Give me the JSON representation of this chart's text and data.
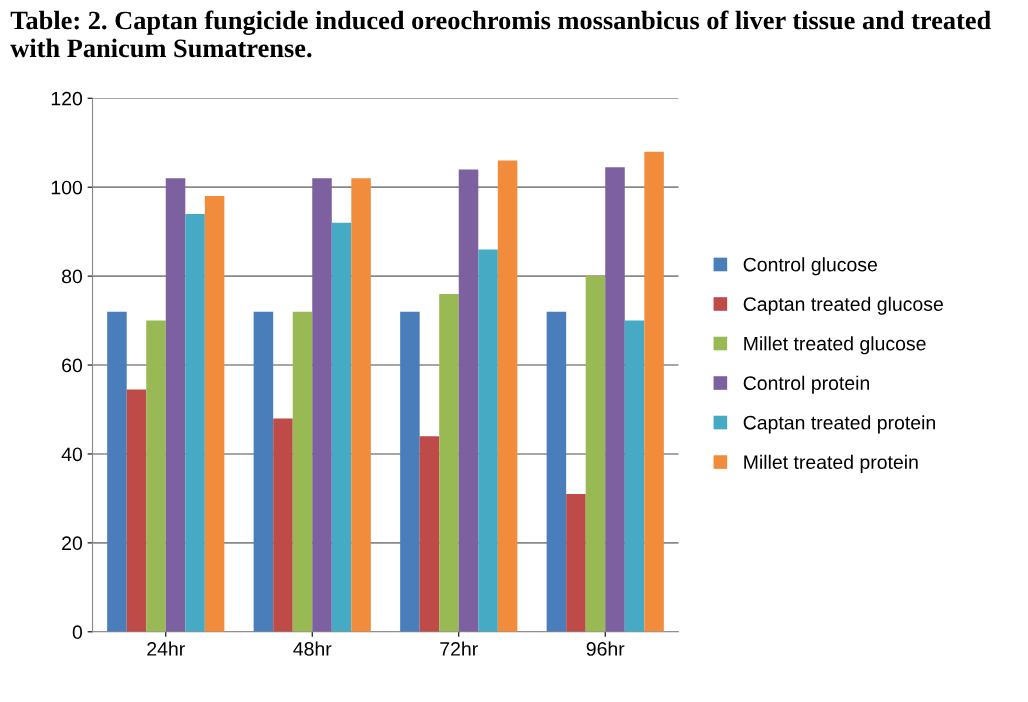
{
  "chart_data": {
    "type": "bar",
    "title": "Table: 2. Captan fungicide induced oreochromis mossanbicus of liver tissue and treated with Panicum Sumatrense.",
    "categories": [
      "24hr",
      "48hr",
      "72hr",
      "96hr"
    ],
    "series": [
      {
        "name": "Control glucose",
        "color": "#4a7ebb",
        "values": [
          72,
          72,
          72,
          72
        ]
      },
      {
        "name": "Captan treated glucose",
        "color": "#be4b48",
        "values": [
          54.5,
          48,
          44,
          31
        ]
      },
      {
        "name": "Millet treated glucose",
        "color": "#98b954",
        "values": [
          70,
          72,
          76,
          80
        ]
      },
      {
        "name": "Control protein",
        "color": "#7d60a0",
        "values": [
          102,
          102,
          104,
          104.5
        ]
      },
      {
        "name": "Captan treated protein",
        "color": "#46aac5",
        "values": [
          94,
          92,
          86,
          70
        ]
      },
      {
        "name": "Millet treated protein",
        "color": "#f08c3c",
        "values": [
          98,
          102,
          106,
          108
        ]
      }
    ],
    "ylim": [
      0,
      120
    ],
    "yticks": [
      0,
      20,
      40,
      60,
      80,
      100,
      120
    ],
    "grid": "y",
    "legend": "right"
  }
}
